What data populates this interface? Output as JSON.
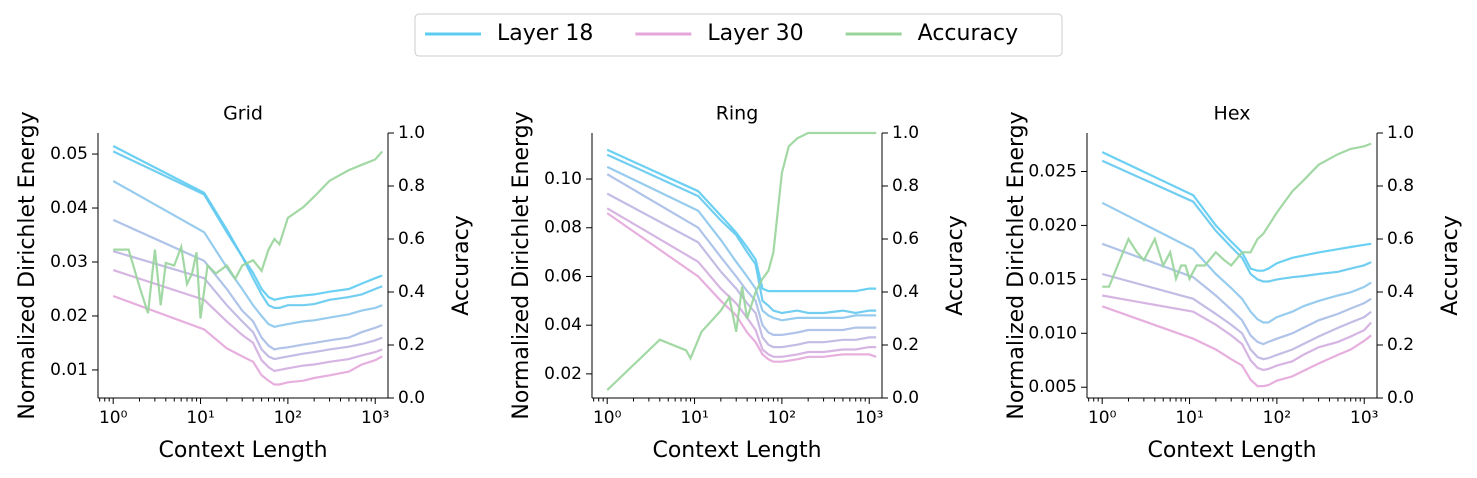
{
  "chart_data": [
    {
      "type": "line",
      "title": "Grid",
      "ylabel": "Normalized Dirichlet Energy",
      "y2label": "Accuracy",
      "xlabel": "Context Length",
      "xlog": true,
      "xlim": [
        0.67,
        1400
      ],
      "xticks": [
        {
          "value": 1,
          "label": "10⁰"
        },
        {
          "value": 10,
          "label": "10¹"
        },
        {
          "value": 100,
          "label": "10²"
        },
        {
          "value": 1000,
          "label": "10³"
        }
      ],
      "ylim": [
        0.0048,
        0.0539
      ],
      "yticks": [
        0.01,
        0.02,
        0.03,
        0.04,
        0.05
      ],
      "y2lim": [
        0,
        1
      ],
      "y2ticks": [
        {
          "value": 0,
          "label": "0.0"
        },
        0.2,
        0.4,
        0.6,
        0.8,
        {
          "value": 1,
          "label": "1.0"
        }
      ],
      "x": [
        1,
        11,
        20,
        30,
        40,
        50,
        60,
        70,
        80,
        100,
        150,
        200,
        300,
        500,
        700,
        1000,
        1200
      ],
      "series": [
        {
          "name": "Layer 18",
          "color": "#5ccbf2",
          "values": [
            0.0515,
            0.0428,
            0.036,
            0.031,
            0.028,
            0.025,
            0.0235,
            0.023,
            0.0232,
            0.0235,
            0.0238,
            0.024,
            0.0245,
            0.025,
            0.026,
            0.027,
            0.0275
          ]
        },
        {
          "color": "#63c9f0",
          "values": [
            0.0505,
            0.0425,
            0.0355,
            0.031,
            0.027,
            0.024,
            0.022,
            0.0215,
            0.0215,
            0.022,
            0.022,
            0.0222,
            0.023,
            0.0235,
            0.024,
            0.025,
            0.0255
          ]
        },
        {
          "color": "#8cc6ec",
          "values": [
            0.045,
            0.0355,
            0.029,
            0.025,
            0.022,
            0.02,
            0.0185,
            0.018,
            0.0182,
            0.0185,
            0.019,
            0.0192,
            0.0197,
            0.0203,
            0.021,
            0.0215,
            0.022
          ]
        },
        {
          "color": "#a7bde6",
          "values": [
            0.0378,
            0.0302,
            0.025,
            0.021,
            0.019,
            0.016,
            0.0145,
            0.0138,
            0.014,
            0.0142,
            0.0147,
            0.015,
            0.0155,
            0.016,
            0.017,
            0.0178,
            0.0183
          ]
        },
        {
          "color": "#bcb5e2",
          "values": [
            0.032,
            0.027,
            0.022,
            0.019,
            0.017,
            0.0138,
            0.0125,
            0.012,
            0.0122,
            0.0125,
            0.013,
            0.0133,
            0.0138,
            0.0143,
            0.0148,
            0.0155,
            0.016
          ]
        },
        {
          "color": "#d2addf",
          "values": [
            0.0285,
            0.023,
            0.019,
            0.0165,
            0.015,
            0.0118,
            0.0105,
            0.0098,
            0.01,
            0.0103,
            0.0108,
            0.011,
            0.0115,
            0.012,
            0.0127,
            0.0133,
            0.0138
          ]
        },
        {
          "name": "Layer 30",
          "color": "#e4a6da",
          "values": [
            0.0237,
            0.0175,
            0.014,
            0.0125,
            0.0115,
            0.009,
            0.008,
            0.0073,
            0.0073,
            0.0077,
            0.008,
            0.0085,
            0.009,
            0.0097,
            0.011,
            0.0118,
            0.0125
          ]
        },
        {
          "name": "Accuracy",
          "color": "#98d49a",
          "axis": "y2",
          "x": [
            1,
            1.5,
            2,
            2.5,
            3,
            3.5,
            4,
            5,
            6,
            7,
            8,
            9,
            10,
            12,
            15,
            20,
            25,
            30,
            40,
            50,
            60,
            70,
            80,
            100,
            150,
            200,
            300,
            500,
            700,
            1000,
            1200
          ],
          "values": [
            0.56,
            0.56,
            0.42,
            0.32,
            0.56,
            0.35,
            0.51,
            0.5,
            0.57,
            0.43,
            0.47,
            0.55,
            0.3,
            0.5,
            0.47,
            0.5,
            0.45,
            0.5,
            0.52,
            0.48,
            0.56,
            0.6,
            0.58,
            0.68,
            0.72,
            0.76,
            0.82,
            0.86,
            0.88,
            0.9,
            0.93
          ]
        }
      ]
    },
    {
      "type": "line",
      "title": "Ring",
      "ylabel": "Normalized Dirichlet Energy",
      "y2label": "Accuracy",
      "xlabel": "Context Length",
      "xlog": true,
      "xlim": [
        0.67,
        1400
      ],
      "xticks": [
        {
          "value": 1,
          "label": "10⁰"
        },
        {
          "value": 10,
          "label": "10¹"
        },
        {
          "value": 100,
          "label": "10²"
        },
        {
          "value": 1000,
          "label": "10³"
        }
      ],
      "ylim": [
        0.0101,
        0.1189
      ],
      "yticks": [
        0.02,
        0.04,
        0.06,
        0.08,
        {
          "value": 0.1,
          "label": "0.10"
        }
      ],
      "y2lim": [
        0,
        1
      ],
      "y2ticks": [
        {
          "value": 0,
          "label": "0.0"
        },
        0.2,
        0.4,
        0.6,
        0.8,
        {
          "value": 1,
          "label": "1.0"
        }
      ],
      "x": [
        1,
        11,
        20,
        30,
        40,
        50,
        60,
        70,
        80,
        100,
        150,
        200,
        300,
        500,
        700,
        1000,
        1200
      ],
      "series": [
        {
          "color": "#5ccbf2",
          "values": [
            0.112,
            0.095,
            0.085,
            0.078,
            0.072,
            0.067,
            0.055,
            0.054,
            0.054,
            0.054,
            0.054,
            0.054,
            0.054,
            0.054,
            0.054,
            0.055,
            0.055
          ]
        },
        {
          "color": "#63c9f0",
          "values": [
            0.11,
            0.093,
            0.083,
            0.077,
            0.07,
            0.065,
            0.05,
            0.048,
            0.046,
            0.045,
            0.046,
            0.045,
            0.045,
            0.046,
            0.045,
            0.046,
            0.046
          ]
        },
        {
          "color": "#8cc6ec",
          "values": [
            0.105,
            0.087,
            0.075,
            0.066,
            0.06,
            0.055,
            0.046,
            0.044,
            0.043,
            0.042,
            0.043,
            0.043,
            0.043,
            0.043,
            0.044,
            0.044,
            0.044
          ]
        },
        {
          "color": "#a7bde6",
          "values": [
            0.102,
            0.08,
            0.068,
            0.06,
            0.054,
            0.05,
            0.04,
            0.037,
            0.036,
            0.036,
            0.037,
            0.038,
            0.038,
            0.038,
            0.039,
            0.039,
            0.039
          ]
        },
        {
          "color": "#bcb5e2",
          "values": [
            0.094,
            0.074,
            0.062,
            0.055,
            0.049,
            0.045,
            0.035,
            0.032,
            0.031,
            0.031,
            0.032,
            0.033,
            0.033,
            0.034,
            0.034,
            0.035,
            0.035
          ]
        },
        {
          "color": "#d2addf",
          "values": [
            0.088,
            0.066,
            0.055,
            0.049,
            0.043,
            0.038,
            0.03,
            0.028,
            0.027,
            0.027,
            0.028,
            0.029,
            0.029,
            0.03,
            0.03,
            0.031,
            0.031
          ]
        },
        {
          "color": "#e4a6da",
          "values": [
            0.086,
            0.06,
            0.05,
            0.044,
            0.037,
            0.033,
            0.028,
            0.026,
            0.025,
            0.025,
            0.026,
            0.027,
            0.027,
            0.028,
            0.028,
            0.028,
            0.027
          ]
        },
        {
          "color": "#98d49a",
          "axis": "y2",
          "x": [
            1,
            4,
            8,
            9,
            12,
            20,
            25,
            30,
            35,
            40,
            50,
            60,
            70,
            80,
            100,
            120,
            150,
            200,
            300,
            500,
            700,
            1000,
            1200
          ],
          "values": [
            0.03,
            0.22,
            0.18,
            0.15,
            0.25,
            0.33,
            0.38,
            0.25,
            0.42,
            0.3,
            0.4,
            0.45,
            0.48,
            0.55,
            0.85,
            0.95,
            0.98,
            1,
            1,
            1,
            1,
            1,
            1
          ]
        }
      ]
    },
    {
      "type": "line",
      "title": "Hex",
      "ylabel": "Normalized Dirichlet Energy",
      "y2label": "Accuracy",
      "xlabel": "Context Length",
      "xlog": true,
      "xlim": [
        0.67,
        1400
      ],
      "xticks": [
        {
          "value": 1,
          "label": "10⁰"
        },
        {
          "value": 10,
          "label": "10¹"
        },
        {
          "value": 100,
          "label": "10²"
        },
        {
          "value": 1000,
          "label": "10³"
        }
      ],
      "ylim": [
        0.004,
        0.02857
      ],
      "yticks": [
        0.005,
        {
          "value": 0.01,
          "label": "0.010"
        },
        0.015,
        {
          "value": 0.02,
          "label": "0.020"
        },
        0.025
      ],
      "y2lim": [
        0,
        1
      ],
      "y2ticks": [
        {
          "value": 0,
          "label": "0.0"
        },
        0.2,
        0.4,
        0.6,
        0.8,
        {
          "value": 1,
          "label": "1.0"
        }
      ],
      "x": [
        1,
        11,
        20,
        30,
        40,
        50,
        60,
        70,
        80,
        100,
        150,
        200,
        300,
        500,
        700,
        1000,
        1200
      ],
      "series": [
        {
          "color": "#5ccbf2",
          "values": [
            0.0268,
            0.0228,
            0.02,
            0.0185,
            0.0175,
            0.016,
            0.0158,
            0.0158,
            0.016,
            0.0165,
            0.017,
            0.0172,
            0.0175,
            0.0178,
            0.018,
            0.0182,
            0.0183
          ]
        },
        {
          "color": "#63c9f0",
          "values": [
            0.026,
            0.0222,
            0.0195,
            0.018,
            0.017,
            0.0155,
            0.015,
            0.0148,
            0.0148,
            0.015,
            0.0152,
            0.0153,
            0.0155,
            0.0157,
            0.016,
            0.0163,
            0.0166
          ]
        },
        {
          "color": "#8cc6ec",
          "values": [
            0.0221,
            0.0178,
            0.0155,
            0.0142,
            0.0132,
            0.012,
            0.0113,
            0.011,
            0.011,
            0.0115,
            0.012,
            0.0125,
            0.013,
            0.0135,
            0.0138,
            0.0143,
            0.0147
          ]
        },
        {
          "color": "#a7bde6",
          "values": [
            0.0183,
            0.0152,
            0.0135,
            0.0122,
            0.0112,
            0.0098,
            0.0092,
            0.009,
            0.0092,
            0.0095,
            0.01,
            0.0105,
            0.0112,
            0.0118,
            0.0123,
            0.0128,
            0.0132
          ]
        },
        {
          "color": "#bcb5e2",
          "values": [
            0.0155,
            0.0132,
            0.0118,
            0.0108,
            0.01,
            0.0085,
            0.0078,
            0.0076,
            0.0077,
            0.008,
            0.0085,
            0.009,
            0.0097,
            0.0105,
            0.011,
            0.0115,
            0.012
          ]
        },
        {
          "color": "#d2addf",
          "values": [
            0.0135,
            0.012,
            0.0108,
            0.0098,
            0.009,
            0.0075,
            0.0068,
            0.0066,
            0.0067,
            0.007,
            0.0074,
            0.008,
            0.0087,
            0.0092,
            0.0097,
            0.0103,
            0.011
          ]
        },
        {
          "color": "#e4a6da",
          "values": [
            0.0125,
            0.0095,
            0.0085,
            0.0076,
            0.007,
            0.0057,
            0.0051,
            0.0051,
            0.0052,
            0.0056,
            0.006,
            0.0065,
            0.0072,
            0.008,
            0.0085,
            0.0093,
            0.0098
          ]
        },
        {
          "color": "#98d49a",
          "axis": "y2",
          "x": [
            1,
            1.2,
            1.5,
            2,
            2.5,
            3,
            4,
            5,
            6,
            7,
            8,
            9,
            10,
            12,
            15,
            20,
            25,
            30,
            40,
            50,
            60,
            70,
            80,
            100,
            150,
            200,
            300,
            500,
            700,
            1000,
            1200
          ],
          "values": [
            0.42,
            0.42,
            0.5,
            0.6,
            0.55,
            0.52,
            0.6,
            0.5,
            0.55,
            0.45,
            0.5,
            0.5,
            0.45,
            0.5,
            0.5,
            0.55,
            0.52,
            0.5,
            0.55,
            0.55,
            0.6,
            0.62,
            0.65,
            0.7,
            0.78,
            0.82,
            0.88,
            0.92,
            0.94,
            0.95,
            0.96
          ]
        }
      ]
    }
  ]
}
